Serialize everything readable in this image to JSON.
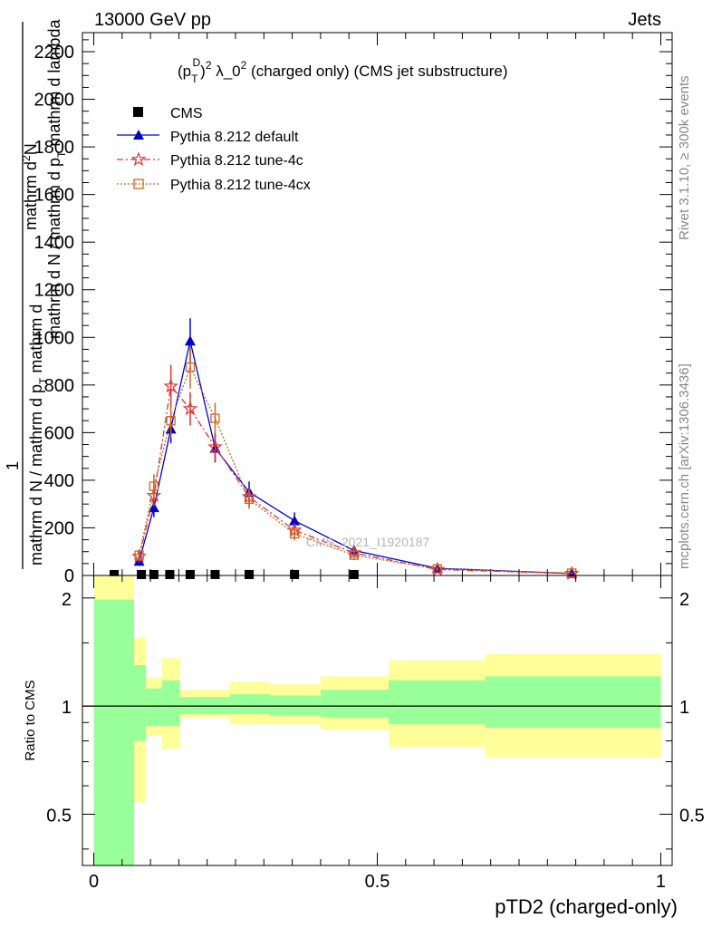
{
  "header": {
    "left": "13000 GeV pp",
    "right": "Jets"
  },
  "side_labels": {
    "rivet": "Rivet 3.1.10, ≥ 300k events",
    "mcplots": "mcplots.cern.ch [arXiv:1306.3436]"
  },
  "watermark": "CMS_2021_I1920187",
  "chart_data": [
    {
      "type": "line",
      "title_parts": [
        "(p",
        "T",
        "D",
        ")",
        "2",
        " λ_0",
        "2",
        " (charged only) (CMS jet substructure)"
      ],
      "ylabel_numerator": "1",
      "ylabel_den1": "mathrm d N / mathrm d p",
      "ylabel_den1_sub": "T",
      "ylabel_den2": " mathrm d",
      "ylabel_den3": "mathrm d N / mathrm d p",
      "ylabel_den3_sub": "T",
      "ylabel_den4": " mathrm d lambda",
      "ylabel_num2": "mathrm d",
      "ylabel_num2_sup": "2",
      "ylabel_num3": "N",
      "xlabel": "pTD2 (charged-only)",
      "xlim": [
        -0.02,
        1.02
      ],
      "ylim": [
        0,
        2280
      ],
      "yticks": [
        0,
        200,
        400,
        600,
        800,
        1000,
        1200,
        1400,
        1600,
        1800,
        2000,
        2200
      ],
      "ytick_labels": [
        "0",
        "200",
        "400",
        "600",
        "800",
        "1000",
        "1200",
        "1400",
        "1600",
        "1800",
        "2000",
        "2200"
      ],
      "legend_position": "top-left",
      "series": [
        {
          "name": "CMS",
          "color": "#000000",
          "marker": "square",
          "x": [
            0.036,
            0.084,
            0.106,
            0.134,
            0.17,
            0.214,
            0.274,
            0.354,
            0.459
          ],
          "y": [
            4,
            4,
            4,
            4,
            4,
            4,
            4,
            4,
            4
          ]
        },
        {
          "name": "Pythia 8.212 default",
          "color": "#0000cc",
          "marker": "triangle",
          "x": [
            0.08,
            0.106,
            0.136,
            0.17,
            0.214,
            0.274,
            0.354,
            0.459,
            0.606,
            0.843
          ],
          "y": [
            60,
            285,
            615,
            985,
            535,
            350,
            230,
            105,
            30,
            8
          ],
          "err": [
            20,
            40,
            60,
            95,
            60,
            45,
            35,
            20,
            8,
            3
          ]
        },
        {
          "name": "Pythia 8.212 tune-4c",
          "color": "#dd3333",
          "marker": "star",
          "x": [
            0.08,
            0.106,
            0.136,
            0.17,
            0.214,
            0.274,
            0.354,
            0.459,
            0.606,
            0.843
          ],
          "y": [
            80,
            335,
            795,
            700,
            540,
            330,
            190,
            95,
            25,
            8
          ],
          "err": [
            25,
            45,
            90,
            70,
            60,
            40,
            30,
            18,
            7,
            3
          ]
        },
        {
          "name": "Pythia 8.212 tune-4cx",
          "color": "#cc6622",
          "marker": "open-square",
          "x": [
            0.08,
            0.106,
            0.136,
            0.17,
            0.214,
            0.274,
            0.354,
            0.459,
            0.606,
            0.843
          ],
          "y": [
            85,
            375,
            650,
            875,
            660,
            320,
            175,
            85,
            28,
            10
          ],
          "err": [
            25,
            50,
            70,
            90,
            65,
            40,
            28,
            16,
            7,
            3
          ]
        }
      ]
    },
    {
      "type": "area",
      "ylabel": "Ratio to CMS",
      "xlabel": "pTD2 (charged-only)",
      "ylim": [
        0.36,
        2.31
      ],
      "yscale": "log",
      "yticks": [
        0.5,
        1,
        2
      ],
      "ytick_labels": [
        "0.5",
        "1",
        "2"
      ],
      "xticks": [
        0,
        0.5,
        1
      ],
      "xtick_labels": [
        "0",
        "0.5",
        "1"
      ],
      "reference": 1,
      "bins": [
        {
          "x0": 0.0,
          "x1": 0.071,
          "green": [
            0.33,
            1.98
          ],
          "yellow": [
            0.33,
            2.3
          ]
        },
        {
          "x0": 0.071,
          "x1": 0.092,
          "green": [
            0.8,
            1.3
          ],
          "yellow": [
            0.54,
            1.55
          ]
        },
        {
          "x0": 0.092,
          "x1": 0.12,
          "green": [
            0.88,
            1.12
          ],
          "yellow": [
            0.83,
            1.2
          ]
        },
        {
          "x0": 0.12,
          "x1": 0.152,
          "green": [
            0.88,
            1.18
          ],
          "yellow": [
            0.76,
            1.36
          ]
        },
        {
          "x0": 0.152,
          "x1": 0.24,
          "green": [
            0.95,
            1.06
          ],
          "yellow": [
            0.93,
            1.11
          ]
        },
        {
          "x0": 0.24,
          "x1": 0.31,
          "green": [
            0.95,
            1.08
          ],
          "yellow": [
            0.89,
            1.17
          ]
        },
        {
          "x0": 0.31,
          "x1": 0.4,
          "green": [
            0.94,
            1.07
          ],
          "yellow": [
            0.89,
            1.15
          ]
        },
        {
          "x0": 0.4,
          "x1": 0.52,
          "green": [
            0.93,
            1.11
          ],
          "yellow": [
            0.86,
            1.21
          ]
        },
        {
          "x0": 0.52,
          "x1": 0.69,
          "green": [
            0.89,
            1.18
          ],
          "yellow": [
            0.77,
            1.34
          ]
        },
        {
          "x0": 0.69,
          "x1": 1.0,
          "green": [
            0.87,
            1.21
          ],
          "yellow": [
            0.72,
            1.4
          ]
        }
      ]
    }
  ]
}
